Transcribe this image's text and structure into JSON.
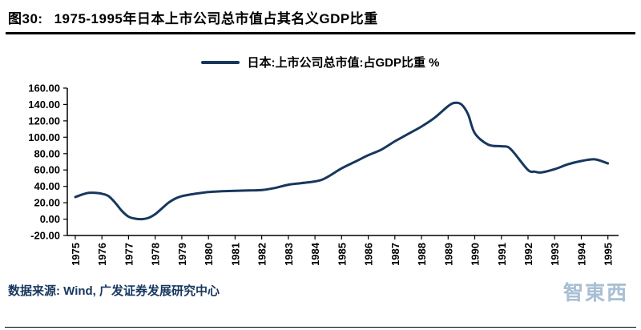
{
  "header": {
    "figure_label": "图30:",
    "title": "1975-1995年日本上市公司总市值占其名义GDP比重"
  },
  "legend": {
    "label": "日本:上市公司总市值:占GDP比重 %",
    "line_color": "#17375e"
  },
  "footer": {
    "source": "数据来源: Wind, 广发证券发展研究中心"
  },
  "watermark": {
    "text": "智東西"
  },
  "chart_data": {
    "type": "line",
    "title": "1975-1995年日本上市公司总市值占其名义GDP比重",
    "xlabel": "",
    "ylabel": "",
    "xlim": [
      1974.7,
      1995.4
    ],
    "ylim": [
      -20,
      160
    ],
    "grid": false,
    "legend_position": "top-center",
    "line_color": "#17375e",
    "x_ticks": [
      1975,
      1976,
      1977,
      1978,
      1979,
      1980,
      1981,
      1982,
      1983,
      1984,
      1985,
      1986,
      1987,
      1988,
      1989,
      1990,
      1991,
      1992,
      1993,
      1994,
      1995
    ],
    "x_tick_labels": [
      "1975",
      "1976",
      "1977",
      "1978",
      "1979",
      "1980",
      "1981",
      "1982",
      "1983",
      "1984",
      "1985",
      "1986",
      "1987",
      "1988",
      "1989",
      "1990",
      "1991",
      "1992",
      "1993",
      "1994",
      "1995"
    ],
    "y_ticks": [
      160,
      140,
      120,
      100,
      80,
      60,
      40,
      20,
      0,
      -20
    ],
    "y_tick_labels": [
      "160.00",
      "140.00",
      "120.00",
      "100.00",
      "80.00",
      "60.00",
      "40.00",
      "20.00",
      "0.00",
      "-20.00"
    ],
    "series": [
      {
        "name": "日本:上市公司总市值:占GDP比重 %",
        "x": [
          1975,
          1975.25,
          1975.5,
          1975.75,
          1976,
          1976.25,
          1976.5,
          1976.75,
          1977,
          1977.25,
          1977.5,
          1977.75,
          1978,
          1978.25,
          1978.5,
          1978.75,
          1979,
          1979.5,
          1980,
          1980.5,
          1981,
          1981.5,
          1982,
          1982.5,
          1983,
          1983.5,
          1984,
          1984.25,
          1984.5,
          1985,
          1985.5,
          1986,
          1986.5,
          1987,
          1987.5,
          1988,
          1988.5,
          1989,
          1989.25,
          1989.5,
          1989.75,
          1990,
          1990.5,
          1991,
          1991.25,
          1991.5,
          1992,
          1992.25,
          1992.5,
          1993,
          1993.5,
          1994,
          1994.5,
          1995
        ],
        "values": [
          27,
          30,
          32,
          32,
          31,
          28,
          20,
          10,
          3,
          0.5,
          0,
          1.5,
          6,
          13,
          20,
          25,
          28,
          31,
          33,
          34,
          34.5,
          35,
          35.5,
          38,
          42,
          44,
          46,
          48,
          52,
          62,
          70,
          78,
          85,
          95,
          104,
          113,
          124,
          138,
          142,
          140,
          128,
          105,
          91,
          89,
          88,
          80,
          60,
          58,
          57,
          61,
          67,
          71,
          73,
          68
        ]
      }
    ]
  }
}
